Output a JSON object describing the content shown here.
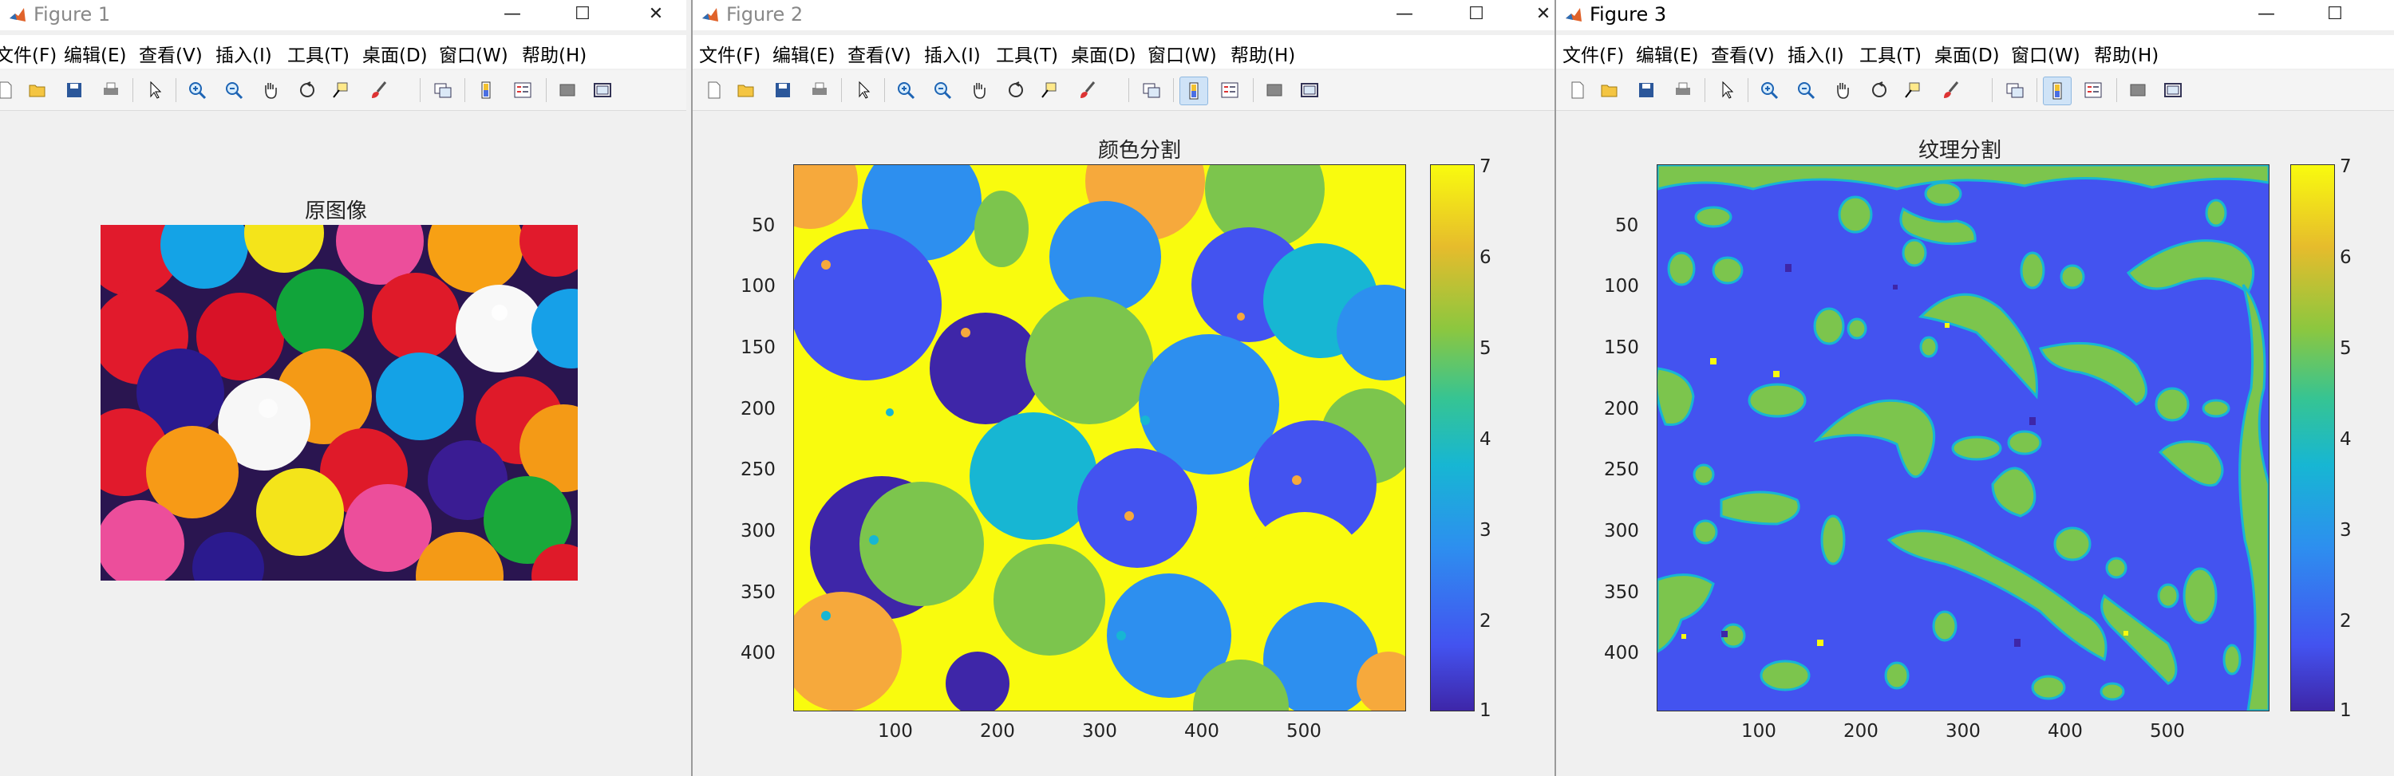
{
  "windows": [
    {
      "title": "Figure 1",
      "active": false,
      "menu": [
        "文件(F)",
        "编辑(E)",
        "查看(V)",
        "插入(I)",
        "工具(T)",
        "桌面(D)",
        "窗口(W)",
        "帮助(H)"
      ],
      "axes_title": "原图像"
    },
    {
      "title": "Figure 2",
      "active": false,
      "menu": [
        "文件(F)",
        "编辑(E)",
        "查看(V)",
        "插入(I)",
        "工具(T)",
        "桌面(D)",
        "窗口(W)",
        "帮助(H)"
      ],
      "axes_title": "颜色分割",
      "x_ticks": [
        "100",
        "200",
        "300",
        "400",
        "500"
      ],
      "y_ticks": [
        "50",
        "100",
        "150",
        "200",
        "250",
        "300",
        "350",
        "400"
      ],
      "colorbar_ticks": [
        "7",
        "6",
        "5",
        "4",
        "3",
        "2",
        "1"
      ]
    },
    {
      "title": "Figure 3",
      "active": true,
      "menu": [
        "文件(F)",
        "编辑(E)",
        "查看(V)",
        "插入(I)",
        "工具(T)",
        "桌面(D)",
        "窗口(W)",
        "帮助(H)"
      ],
      "axes_title": "纹理分割",
      "x_ticks": [
        "100",
        "200",
        "300",
        "400",
        "500"
      ],
      "y_ticks": [
        "50",
        "100",
        "150",
        "200",
        "250",
        "300",
        "350",
        "400"
      ],
      "colorbar_ticks": [
        "7",
        "6",
        "5",
        "4",
        "3",
        "2",
        "1"
      ]
    }
  ],
  "icons": [
    "new-file-icon",
    "open-folder-icon",
    "save-icon",
    "print-icon",
    "pointer-icon",
    "zoom-in-icon",
    "zoom-out-icon",
    "pan-icon",
    "rotate-3d-icon",
    "data-cursor-icon",
    "brush-icon",
    "link-plot-icon",
    "insert-colorbar-icon",
    "insert-legend-icon",
    "hide-plot-tools-icon",
    "show-plot-tools-icon"
  ],
  "colors": {
    "parula_1": "#3e26a8",
    "parula_2": "#4353f0",
    "parula_3": "#2d8fef",
    "parula_4": "#17b6d3",
    "parula_5": "#7cc54d",
    "parula_6": "#f6a93c",
    "parula_7": "#f9fb0e"
  }
}
